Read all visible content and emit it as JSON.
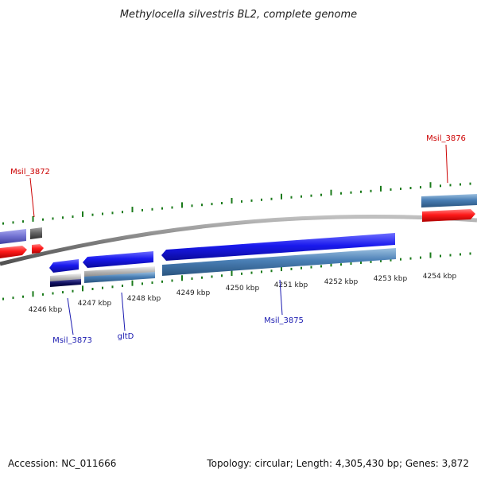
{
  "title": "Methylocella silvestris BL2, complete genome",
  "footer": {
    "accession": "Accession: NC_011666",
    "summary": "Topology: circular; Length: 4,305,430 bp; Genes: 3,872"
  },
  "scale_labels": [
    "4246 kbp",
    "4247 kbp",
    "4248 kbp",
    "4249 kbp",
    "4250 kbp",
    "4251 kbp",
    "4252 kbp",
    "4253 kbp",
    "4254 kbp"
  ],
  "gene_labels": [
    {
      "text": "Msil_3872",
      "strand": "forward"
    },
    {
      "text": "Msil_3876",
      "strand": "forward"
    },
    {
      "text": "Msil_3873",
      "strand": "reverse"
    },
    {
      "text": "gltD",
      "strand": "reverse"
    },
    {
      "text": "Msil_3875",
      "strand": "reverse"
    }
  ],
  "colors": {
    "forward_label": "#cc0000",
    "reverse_label": "#1a1ab0",
    "backbone": "#808080",
    "ticks": "#1a7a1a",
    "cds_forward": "#ff1a1a",
    "cds_reverse": "#1a1aee",
    "gene_bar": "#4a7fb5",
    "gene_bar_gray": "#a8a8a8",
    "gene_bar_dark": "#101060",
    "gene_bar_purple": "#7070d0"
  }
}
